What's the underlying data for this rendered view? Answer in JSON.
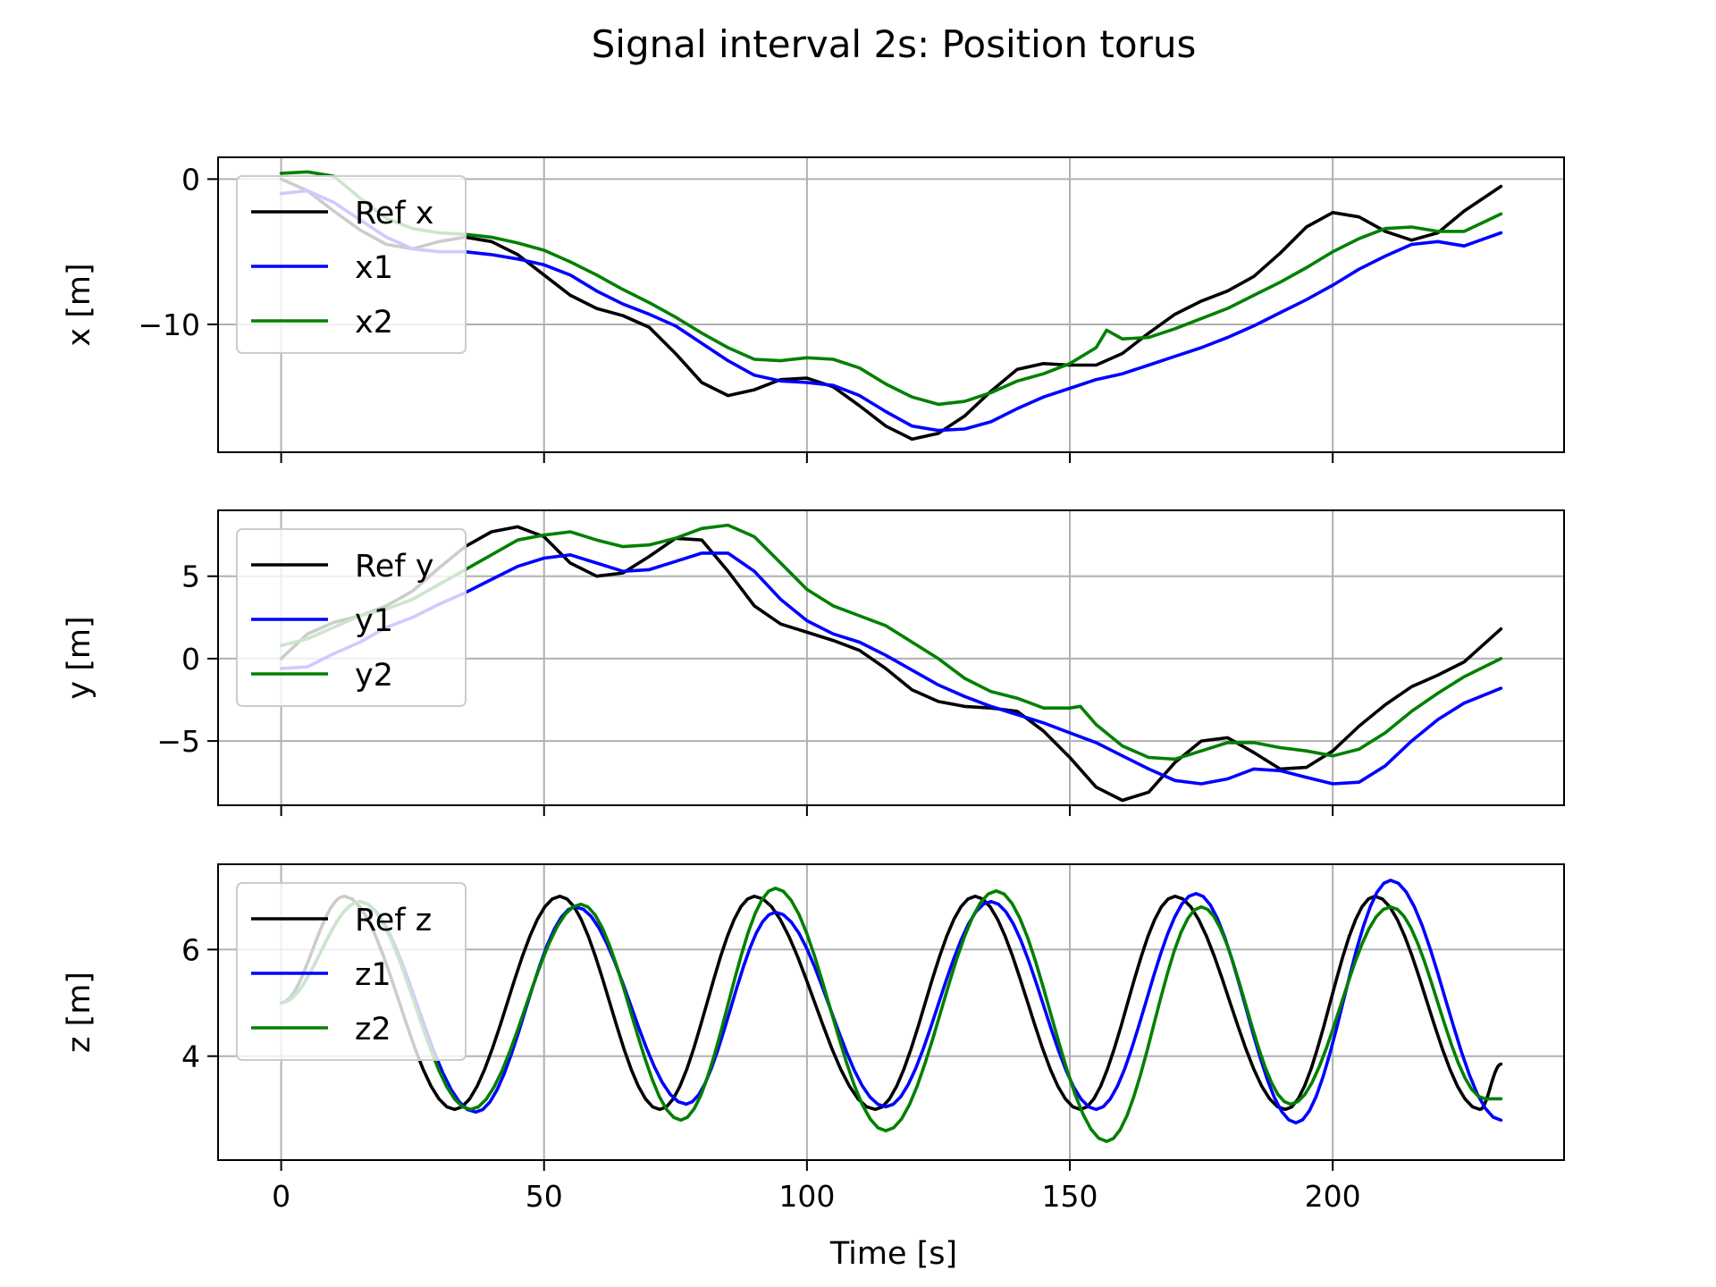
{
  "figure": {
    "title": "Signal interval 2s: Position torus",
    "xlabel": "Time [s]"
  },
  "chart_data": [
    {
      "type": "line",
      "ylabel": "x [m]",
      "xlim": [
        -12,
        244
      ],
      "ylim": [
        -18.8,
        1.5
      ],
      "xticks": [
        0,
        50,
        100,
        150,
        200
      ],
      "yticks": [
        0,
        -10
      ],
      "grid": true,
      "legend": "upper-left",
      "series": [
        {
          "name": "Ref x",
          "color": "#000000",
          "x": [
            0,
            5,
            10,
            15,
            20,
            25,
            30,
            35,
            40,
            45,
            50,
            55,
            60,
            65,
            70,
            75,
            80,
            85,
            90,
            95,
            100,
            105,
            110,
            115,
            120,
            125,
            130,
            135,
            140,
            145,
            150,
            155,
            160,
            165,
            170,
            175,
            180,
            185,
            190,
            195,
            200,
            205,
            210,
            215,
            220,
            225,
            232
          ],
          "y": [
            0,
            -0.8,
            -2.2,
            -3.5,
            -4.5,
            -4.8,
            -4.3,
            -4.0,
            -4.3,
            -5.2,
            -6.6,
            -8.0,
            -8.9,
            -9.4,
            -10.2,
            -12.0,
            -14.0,
            -14.9,
            -14.5,
            -13.8,
            -13.7,
            -14.3,
            -15.6,
            -17.0,
            -17.9,
            -17.5,
            -16.3,
            -14.6,
            -13.1,
            -12.7,
            -12.8,
            -12.8,
            -12.0,
            -10.6,
            -9.3,
            -8.4,
            -7.7,
            -6.7,
            -5.1,
            -3.3,
            -2.3,
            -2.6,
            -3.6,
            -4.2,
            -3.7,
            -2.2,
            -0.5
          ]
        },
        {
          "name": "x1",
          "color": "#0000ff",
          "x": [
            0,
            5,
            10,
            15,
            20,
            25,
            30,
            35,
            40,
            45,
            50,
            55,
            60,
            65,
            70,
            75,
            80,
            85,
            90,
            95,
            100,
            105,
            110,
            115,
            120,
            125,
            130,
            135,
            140,
            145,
            150,
            155,
            160,
            165,
            170,
            175,
            180,
            185,
            190,
            195,
            200,
            205,
            210,
            215,
            220,
            225,
            232
          ],
          "y": [
            -1.0,
            -0.8,
            -1.6,
            -2.8,
            -4.0,
            -4.8,
            -5.0,
            -5.0,
            -5.2,
            -5.5,
            -5.9,
            -6.6,
            -7.7,
            -8.6,
            -9.3,
            -10.1,
            -11.3,
            -12.5,
            -13.5,
            -13.9,
            -14.0,
            -14.2,
            -14.9,
            -16.0,
            -17.0,
            -17.3,
            -17.2,
            -16.7,
            -15.8,
            -15.0,
            -14.4,
            -13.8,
            -13.4,
            -12.8,
            -12.2,
            -11.6,
            -10.9,
            -10.1,
            -9.2,
            -8.3,
            -7.3,
            -6.2,
            -5.3,
            -4.5,
            -4.3,
            -4.6,
            -3.7
          ]
        },
        {
          "name": "x2",
          "color": "#008000",
          "x": [
            0,
            5,
            10,
            15,
            20,
            25,
            30,
            35,
            40,
            45,
            50,
            55,
            60,
            65,
            70,
            75,
            80,
            85,
            90,
            95,
            100,
            105,
            110,
            115,
            120,
            125,
            130,
            135,
            140,
            145,
            150,
            155,
            157,
            160,
            165,
            170,
            175,
            180,
            185,
            190,
            195,
            200,
            205,
            210,
            215,
            220,
            225,
            232
          ],
          "y": [
            0.4,
            0.5,
            0.2,
            -1.3,
            -2.7,
            -3.4,
            -3.7,
            -3.8,
            -4.0,
            -4.4,
            -4.9,
            -5.7,
            -6.6,
            -7.6,
            -8.5,
            -9.5,
            -10.6,
            -11.6,
            -12.4,
            -12.5,
            -12.3,
            -12.4,
            -13.0,
            -14.1,
            -15.0,
            -15.5,
            -15.3,
            -14.7,
            -13.9,
            -13.4,
            -12.7,
            -11.6,
            -10.4,
            -11.0,
            -10.9,
            -10.3,
            -9.6,
            -8.9,
            -8.0,
            -7.1,
            -6.1,
            -5.0,
            -4.1,
            -3.4,
            -3.3,
            -3.6,
            -3.6,
            -2.4
          ]
        }
      ]
    },
    {
      "type": "line",
      "ylabel": "y [m]",
      "xlim": [
        -12,
        244
      ],
      "ylim": [
        -8.9,
        9.0
      ],
      "xticks": [
        0,
        50,
        100,
        150,
        200
      ],
      "yticks": [
        5,
        0,
        -5
      ],
      "grid": true,
      "legend": "upper-left",
      "series": [
        {
          "name": "Ref y",
          "color": "#000000",
          "x": [
            0,
            5,
            10,
            15,
            20,
            25,
            30,
            35,
            40,
            45,
            50,
            55,
            60,
            65,
            70,
            75,
            80,
            85,
            90,
            95,
            100,
            105,
            110,
            115,
            120,
            125,
            130,
            135,
            140,
            145,
            150,
            155,
            160,
            165,
            170,
            175,
            180,
            185,
            190,
            195,
            200,
            205,
            210,
            215,
            220,
            225,
            232
          ],
          "y": [
            0,
            1.5,
            2.2,
            2.6,
            3.2,
            4.1,
            5.5,
            6.8,
            7.7,
            8.0,
            7.4,
            5.8,
            5.0,
            5.2,
            6.2,
            7.3,
            7.2,
            5.3,
            3.2,
            2.1,
            1.6,
            1.1,
            0.5,
            -0.6,
            -1.9,
            -2.6,
            -2.9,
            -3.0,
            -3.2,
            -4.4,
            -6.0,
            -7.8,
            -8.6,
            -8.1,
            -6.3,
            -5.0,
            -4.8,
            -5.7,
            -6.7,
            -6.6,
            -5.6,
            -4.1,
            -2.8,
            -1.7,
            -1.0,
            -0.2,
            1.8
          ]
        },
        {
          "name": "y1",
          "color": "#0000ff",
          "x": [
            0,
            5,
            10,
            15,
            20,
            25,
            30,
            35,
            40,
            45,
            50,
            55,
            60,
            65,
            70,
            75,
            80,
            85,
            90,
            95,
            100,
            105,
            110,
            115,
            120,
            125,
            130,
            135,
            140,
            145,
            150,
            155,
            160,
            165,
            170,
            175,
            180,
            185,
            190,
            195,
            200,
            205,
            210,
            215,
            220,
            225,
            232
          ],
          "y": [
            -0.6,
            -0.5,
            0.3,
            1.0,
            1.9,
            2.5,
            3.3,
            4.0,
            4.8,
            5.6,
            6.1,
            6.3,
            5.8,
            5.3,
            5.4,
            5.9,
            6.4,
            6.4,
            5.3,
            3.6,
            2.3,
            1.5,
            1.0,
            0.2,
            -0.7,
            -1.6,
            -2.3,
            -2.9,
            -3.4,
            -3.9,
            -4.5,
            -5.1,
            -5.9,
            -6.7,
            -7.4,
            -7.6,
            -7.3,
            -6.7,
            -6.8,
            -7.2,
            -7.6,
            -7.5,
            -6.5,
            -5.0,
            -3.7,
            -2.7,
            -1.8
          ]
        },
        {
          "name": "y2",
          "color": "#008000",
          "x": [
            0,
            5,
            10,
            15,
            20,
            25,
            30,
            35,
            40,
            45,
            50,
            55,
            60,
            65,
            70,
            75,
            80,
            85,
            90,
            95,
            100,
            105,
            110,
            115,
            120,
            125,
            130,
            135,
            140,
            145,
            150,
            152,
            155,
            160,
            165,
            170,
            175,
            180,
            185,
            190,
            195,
            200,
            205,
            210,
            215,
            220,
            225,
            232
          ],
          "y": [
            0.8,
            1.2,
            1.9,
            2.6,
            3.0,
            3.6,
            4.5,
            5.4,
            6.3,
            7.2,
            7.5,
            7.7,
            7.2,
            6.8,
            6.9,
            7.3,
            7.9,
            8.1,
            7.4,
            5.8,
            4.2,
            3.2,
            2.6,
            2.0,
            1.0,
            0.0,
            -1.2,
            -2.0,
            -2.4,
            -3.0,
            -3.0,
            -2.9,
            -4.0,
            -5.3,
            -6.0,
            -6.1,
            -5.6,
            -5.1,
            -5.1,
            -5.4,
            -5.6,
            -5.9,
            -5.5,
            -4.5,
            -3.2,
            -2.1,
            -1.1,
            0.0
          ]
        }
      ]
    },
    {
      "type": "line",
      "ylabel": "z [m]",
      "xlim": [
        -12,
        244
      ],
      "ylim": [
        2.05,
        7.6
      ],
      "xticks": [
        0,
        50,
        100,
        150,
        200
      ],
      "yticks": [
        6,
        4
      ],
      "grid": true,
      "legend": "upper-left",
      "series": [
        {
          "name": "Ref z",
          "color": "#000000",
          "start": 5.0,
          "end": 3.85,
          "peaks_x": [
            12,
            53,
            90,
            132,
            170,
            208
          ],
          "troughs_x": [
            33,
            72,
            113,
            152,
            191,
            228
          ],
          "amp_max": 7.0,
          "amp_min": 3.0
        },
        {
          "name": "z1",
          "color": "#0000ff",
          "start": 5.0,
          "end": 2.8,
          "peaks_x": [
            15,
            56,
            94,
            135,
            174,
            211
          ],
          "troughs_x": [
            37,
            77,
            115,
            155,
            193,
            232
          ],
          "peaks_y": [
            6.9,
            6.8,
            6.7,
            6.9,
            7.05,
            7.3
          ],
          "troughs_y": [
            2.95,
            3.1,
            3.05,
            3.0,
            2.75,
            2.8
          ]
        },
        {
          "name": "z2",
          "color": "#008000",
          "start": 5.0,
          "end": 3.2,
          "peaks_x": [
            15,
            57,
            94,
            136,
            175,
            211
          ],
          "troughs_x": [
            36,
            76,
            115,
            157,
            192,
            229
          ],
          "peaks_y": [
            6.9,
            6.85,
            7.15,
            7.1,
            6.8,
            6.8
          ],
          "troughs_y": [
            3.0,
            2.8,
            2.6,
            2.4,
            3.1,
            3.2
          ]
        }
      ]
    }
  ]
}
